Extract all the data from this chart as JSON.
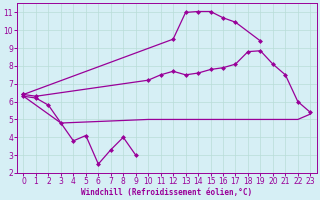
{
  "bg_color": "#d6eff5",
  "line_color": "#990099",
  "grid_color": "#b8ddd8",
  "xlabel": "Windchill (Refroidissement éolien,°C)",
  "ylim": [
    2,
    11.5
  ],
  "xlim": [
    -0.5,
    23.5
  ],
  "line_zigzag_x": [
    0,
    1,
    2,
    3,
    4,
    5,
    6,
    7,
    8,
    9
  ],
  "line_zigzag_y": [
    6.3,
    6.2,
    5.8,
    4.8,
    3.8,
    4.1,
    2.5,
    3.3,
    4.0,
    3.0
  ],
  "line_flat_x": [
    0,
    3,
    10,
    11,
    12,
    13,
    14,
    15,
    16,
    17,
    18,
    19,
    20,
    21,
    22,
    23
  ],
  "line_flat_y": [
    6.3,
    4.8,
    5.0,
    5.0,
    5.0,
    5.0,
    5.0,
    5.0,
    5.0,
    5.0,
    5.0,
    5.0,
    5.0,
    5.0,
    5.0,
    5.3
  ],
  "line_mid_x": [
    0,
    1,
    10,
    11,
    12,
    13,
    14,
    15,
    16,
    17,
    18,
    19,
    20,
    21,
    22,
    23
  ],
  "line_mid_y": [
    6.4,
    6.3,
    7.2,
    7.5,
    7.7,
    7.5,
    7.6,
    7.8,
    7.9,
    8.1,
    8.8,
    8.85,
    8.1,
    7.5,
    6.0,
    5.4
  ],
  "line_top_x": [
    0,
    12,
    13,
    14,
    15,
    16,
    17,
    19
  ],
  "line_top_y": [
    6.4,
    9.5,
    11.0,
    11.05,
    11.05,
    10.7,
    10.45,
    9.4
  ],
  "xticks": [
    0,
    1,
    2,
    3,
    4,
    5,
    6,
    7,
    8,
    9,
    10,
    11,
    12,
    13,
    14,
    15,
    16,
    17,
    18,
    19,
    20,
    21,
    22,
    23
  ],
  "yticks": [
    2,
    3,
    4,
    5,
    6,
    7,
    8,
    9,
    10,
    11
  ],
  "marker_size": 2.5,
  "line_width": 0.9
}
